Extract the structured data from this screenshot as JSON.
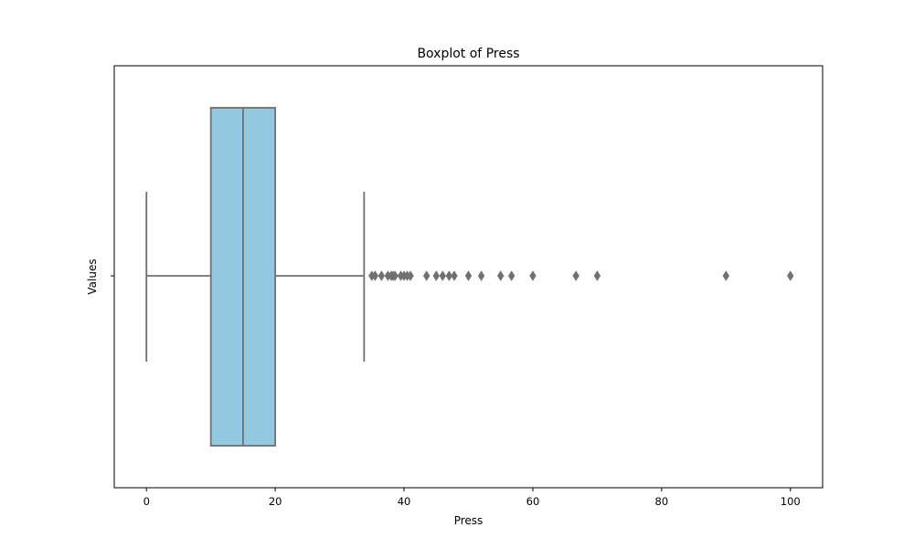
{
  "chart_data": {
    "type": "boxplot",
    "title": "Boxplot of Press",
    "xlabel": "Press",
    "ylabel": "Values",
    "xlim": [
      -5,
      105
    ],
    "xticks": [
      0,
      20,
      40,
      60,
      80,
      100
    ],
    "grid": false,
    "orientation": "horizontal",
    "colors": {
      "box_fill": "#92c9e1",
      "line": "#707070",
      "outlier": "#707070"
    },
    "box": {
      "whisker_low": 0,
      "q1": 10,
      "median": 15,
      "q3": 20,
      "whisker_high": 33.8
    },
    "outliers": [
      35,
      35.5,
      36.5,
      37.5,
      38,
      38.3,
      38.6,
      39.5,
      40,
      40.5,
      41,
      43.5,
      45,
      46,
      47,
      47.8,
      50,
      52,
      55,
      56.7,
      60,
      66.7,
      70,
      90,
      100
    ]
  }
}
